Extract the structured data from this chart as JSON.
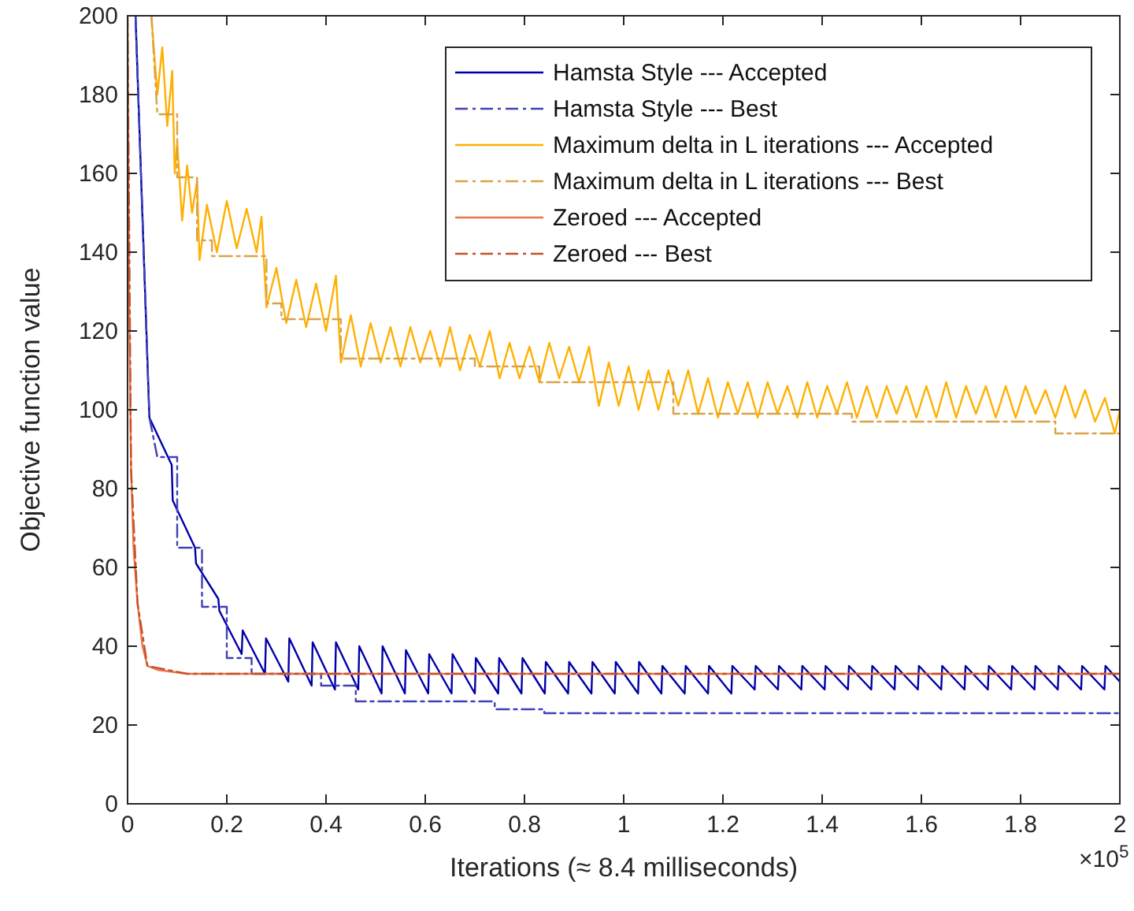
{
  "chart_data": {
    "type": "line",
    "xlabel": "Iterations (≈ 8.4 milliseconds)",
    "ylabel": "Objective function value",
    "xlim": [
      0,
      2
    ],
    "xticks": [
      0,
      0.2,
      0.4,
      0.6,
      0.8,
      1,
      1.2,
      1.4,
      1.6,
      1.8,
      2
    ],
    "ylim": [
      0,
      200
    ],
    "yticks": [
      0,
      20,
      40,
      60,
      80,
      100,
      120,
      140,
      160,
      180,
      200
    ],
    "grid": false,
    "legend": "top right",
    "annotations": [
      "×10$^{5}$"
    ],
    "series": [
      {
        "name": "Hamsta Style --- Accepted",
        "color": "#0000a8",
        "line_style": "solid",
        "x": [
          0.016,
          0.044,
          0.089,
          0.091,
          0.136,
          0.138,
          0.183,
          0.185,
          0.23,
          0.232,
          0.277,
          0.279,
          0.324,
          0.326,
          0.371,
          0.373,
          0.418,
          0.42,
          0.465,
          0.467,
          0.512,
          0.514,
          0.559,
          0.561,
          0.606,
          0.608,
          0.653,
          0.655,
          0.7,
          0.702,
          0.747,
          0.749,
          0.794,
          0.796,
          0.841,
          0.843,
          0.888,
          0.89,
          0.935,
          0.937,
          0.982,
          0.984,
          1.029,
          1.031,
          1.076,
          1.078,
          1.123,
          1.125,
          1.17,
          1.172,
          1.217,
          1.219,
          1.264,
          1.266,
          1.311,
          1.313,
          1.358,
          1.36,
          1.405,
          1.407,
          1.452,
          1.454,
          1.499,
          1.501,
          1.546,
          1.548,
          1.593,
          1.595,
          1.64,
          1.642,
          1.687,
          1.689,
          1.734,
          1.736,
          1.781,
          1.783,
          1.828,
          1.83,
          1.875,
          1.877,
          1.922,
          1.924,
          1.969,
          1.971,
          2.0
        ],
        "values": [
          200,
          98,
          86,
          77,
          65,
          61,
          52,
          49,
          38,
          44,
          33,
          42,
          31,
          42,
          30,
          41,
          29,
          41,
          29,
          40,
          28,
          40,
          28,
          39,
          28,
          38,
          28,
          38,
          28,
          37,
          28,
          37,
          28,
          37,
          28,
          36,
          28,
          36,
          28,
          36,
          28,
          36,
          28,
          36,
          28,
          35,
          28,
          35,
          28,
          35,
          28,
          35,
          29,
          35,
          29,
          35,
          29,
          35,
          29,
          35,
          29,
          35,
          29,
          35,
          29,
          35,
          29,
          35,
          29,
          35,
          29,
          35,
          29,
          35,
          29,
          35,
          29,
          35,
          29,
          35,
          29,
          35,
          29,
          35,
          31
        ]
      },
      {
        "name": "Hamsta Style --- Best",
        "color": "#4040b8",
        "line_style": "dashdot",
        "x": [
          0.016,
          0.044,
          0.06,
          0.1,
          0.1,
          0.15,
          0.15,
          0.2,
          0.2,
          0.25,
          0.25,
          0.39,
          0.39,
          0.46,
          0.46,
          0.74,
          0.74,
          0.84,
          0.84,
          2.0
        ],
        "values": [
          200,
          98,
          88,
          88,
          65,
          65,
          50,
          50,
          37,
          37,
          33,
          33,
          30,
          30,
          26,
          26,
          24,
          24,
          23,
          23
        ]
      },
      {
        "name": "Maximum delta in L iterations --- Accepted",
        "color": "#ffb000",
        "line_style": "solid",
        "x": [
          0.048,
          0.06,
          0.07,
          0.08,
          0.09,
          0.095,
          0.1,
          0.11,
          0.12,
          0.13,
          0.14,
          0.145,
          0.16,
          0.18,
          0.2,
          0.22,
          0.24,
          0.26,
          0.27,
          0.28,
          0.3,
          0.32,
          0.34,
          0.36,
          0.38,
          0.4,
          0.42,
          0.43,
          0.45,
          0.47,
          0.49,
          0.51,
          0.53,
          0.55,
          0.57,
          0.59,
          0.61,
          0.63,
          0.65,
          0.67,
          0.69,
          0.71,
          0.73,
          0.75,
          0.77,
          0.79,
          0.81,
          0.83,
          0.85,
          0.87,
          0.89,
          0.91,
          0.93,
          0.95,
          0.97,
          0.99,
          1.01,
          1.03,
          1.05,
          1.07,
          1.09,
          1.11,
          1.13,
          1.15,
          1.17,
          1.19,
          1.21,
          1.23,
          1.25,
          1.27,
          1.29,
          1.31,
          1.33,
          1.35,
          1.37,
          1.39,
          1.41,
          1.43,
          1.45,
          1.47,
          1.49,
          1.51,
          1.53,
          1.55,
          1.57,
          1.59,
          1.61,
          1.63,
          1.65,
          1.67,
          1.69,
          1.71,
          1.73,
          1.75,
          1.77,
          1.79,
          1.81,
          1.83,
          1.85,
          1.87,
          1.89,
          1.91,
          1.93,
          1.95,
          1.97,
          1.99,
          2.0
        ],
        "values": [
          200,
          180,
          192,
          172,
          186,
          160,
          168,
          148,
          162,
          150,
          158,
          138,
          152,
          140,
          153,
          141,
          151,
          140,
          149,
          126,
          136,
          122,
          133,
          121,
          132,
          120,
          134,
          112,
          124,
          111,
          122,
          112,
          121,
          111,
          121,
          112,
          120,
          111,
          121,
          110,
          119,
          111,
          120,
          108,
          117,
          108,
          116,
          107,
          117,
          108,
          116,
          107,
          116,
          101,
          112,
          101,
          111,
          100,
          110,
          100,
          110,
          101,
          110,
          99,
          108,
          98,
          107,
          99,
          107,
          98,
          107,
          99,
          106,
          98,
          107,
          98,
          106,
          99,
          107,
          98,
          106,
          98,
          106,
          99,
          106,
          98,
          106,
          98,
          107,
          98,
          106,
          99,
          106,
          98,
          106,
          98,
          106,
          99,
          105,
          98,
          106,
          98,
          105,
          97,
          103,
          94,
          100
        ]
      },
      {
        "name": "Maximum delta in L iterations --- Best",
        "color": "#d9a24a",
        "line_style": "dashdot",
        "x": [
          0.048,
          0.06,
          0.1,
          0.1,
          0.14,
          0.14,
          0.17,
          0.17,
          0.28,
          0.28,
          0.31,
          0.31,
          0.43,
          0.43,
          0.7,
          0.7,
          0.83,
          0.83,
          1.1,
          1.1,
          1.46,
          1.46,
          1.87,
          1.87,
          2.0
        ],
        "values": [
          200,
          175,
          175,
          159,
          159,
          143,
          143,
          139,
          139,
          127,
          127,
          123,
          123,
          113,
          113,
          111,
          111,
          107,
          107,
          99,
          99,
          97,
          97,
          94,
          94
        ]
      },
      {
        "name": "Zeroed --- Accepted",
        "color": "#e8774a",
        "line_style": "solid",
        "x": [
          0,
          0.003,
          0.007,
          0.012,
          0.02,
          0.03,
          0.04,
          0.06,
          0.12,
          2.0
        ],
        "values": [
          200,
          130,
          85,
          65,
          51,
          40,
          35,
          34,
          33,
          33
        ]
      },
      {
        "name": "Zeroed --- Best",
        "color": "#c8502a",
        "line_style": "dashdot",
        "x": [
          0,
          0.007,
          0.02,
          0.04,
          0.12,
          2.0
        ],
        "values": [
          200,
          85,
          51,
          35,
          33,
          33
        ]
      }
    ]
  }
}
